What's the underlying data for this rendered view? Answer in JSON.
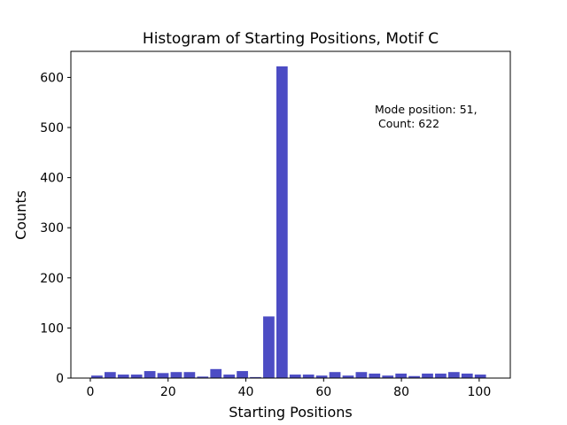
{
  "chart_data": {
    "type": "bar",
    "title": "Histogram of Starting Positions, Motif C",
    "xlabel": "Starting Positions",
    "ylabel": "Counts",
    "xlim": [
      -5,
      108
    ],
    "ylim": [
      0,
      652
    ],
    "xticks": [
      0,
      20,
      40,
      60,
      80,
      100
    ],
    "yticks": [
      0,
      100,
      200,
      300,
      400,
      500,
      600
    ],
    "bin_width": 3.4,
    "bar_width": 2.9,
    "bar_color": "#4c4cc4",
    "x": [
      1.7,
      5.1,
      8.5,
      11.9,
      15.3,
      18.7,
      22.1,
      25.5,
      28.9,
      32.3,
      35.7,
      39.1,
      42.5,
      45.9,
      49.3,
      52.7,
      56.1,
      59.5,
      62.9,
      66.3,
      69.7,
      73.1,
      76.5,
      79.9,
      83.3,
      86.7,
      90.1,
      93.5,
      96.9,
      100.3
    ],
    "values": [
      5,
      12,
      7,
      7,
      14,
      10,
      12,
      12,
      3,
      18,
      7,
      14,
      2,
      123,
      622,
      7,
      7,
      5,
      12,
      5,
      12,
      9,
      5,
      9,
      4,
      9,
      9,
      12,
      9,
      7
    ],
    "annotation": {
      "lines": [
        "Mode position: 51,",
        " Count: 622"
      ]
    },
    "grid": false
  }
}
